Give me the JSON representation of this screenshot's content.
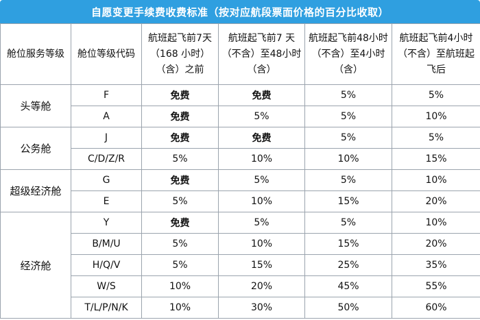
{
  "title": "自愿变更手续费收费标准（按对应航段票面价格的百分比收取）",
  "headers": [
    "舱位服务等级",
    "舱位等级代码",
    "航班起飞前7天（168 小时）（含）之前",
    "航班起飞前7 天（不含）至48小时（含）",
    "航班起飞前48小时（不含）至4小时（含）",
    "航班起飞前4小时（不含）至航班起飞后"
  ],
  "groups": [
    {
      "name": "头等舱",
      "rows": [
        {
          "code": "F",
          "v": [
            "免费",
            "免费",
            "5%",
            "5%"
          ]
        },
        {
          "code": "A",
          "v": [
            "免费",
            "5%",
            "5%",
            "10%"
          ]
        }
      ]
    },
    {
      "name": "公务舱",
      "rows": [
        {
          "code": "J",
          "v": [
            "免费",
            "免费",
            "5%",
            "5%"
          ]
        },
        {
          "code": "C/D/Z/R",
          "v": [
            "5%",
            "10%",
            "10%",
            "15%"
          ]
        }
      ]
    },
    {
      "name": "超级经济舱",
      "rows": [
        {
          "code": "G",
          "v": [
            "免费",
            "5%",
            "5%",
            "10%"
          ]
        },
        {
          "code": "E",
          "v": [
            "5%",
            "10%",
            "15%",
            "20%"
          ]
        }
      ]
    },
    {
      "name": "经济舱",
      "rows": [
        {
          "code": "Y",
          "v": [
            "免费",
            "5%",
            "5%",
            "10%"
          ]
        },
        {
          "code": "B/M/U",
          "v": [
            "5%",
            "10%",
            "15%",
            "20%"
          ]
        },
        {
          "code": "H/Q/V",
          "v": [
            "5%",
            "15%",
            "25%",
            "35%"
          ]
        },
        {
          "code": "W/S",
          "v": [
            "10%",
            "20%",
            "45%",
            "55%"
          ]
        },
        {
          "code": "T/L/P/N/K",
          "v": [
            "10%",
            "30%",
            "50%",
            "60%"
          ]
        }
      ]
    }
  ]
}
